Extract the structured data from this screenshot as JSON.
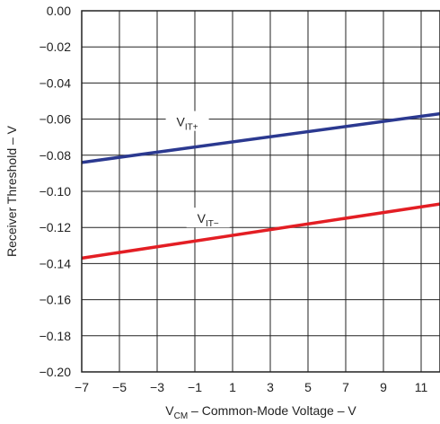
{
  "chart_data": {
    "type": "line",
    "title": "",
    "xlabel_main": "V",
    "xlabel_sub": "CM",
    "xlabel_rest": " – Common-Mode Voltage – V",
    "ylabel": "Receiver Threshold – V",
    "xlim": [
      -7,
      12
    ],
    "ylim": [
      -0.2,
      0.0
    ],
    "grid": true,
    "xticks": [
      -7,
      -5,
      -3,
      -1,
      1,
      3,
      5,
      7,
      9,
      11
    ],
    "xtick_labels": [
      "−7",
      "−5",
      "−3",
      "−1",
      "1",
      "3",
      "5",
      "7",
      "9",
      "11"
    ],
    "yticks": [
      0,
      -0.02,
      -0.04,
      -0.06,
      -0.08,
      -0.1,
      -0.12,
      -0.14,
      -0.16,
      -0.18,
      -0.2
    ],
    "ytick_labels": [
      "0.00",
      "−0.02",
      "−0.04",
      "−0.06",
      "−0.08",
      "−0.10",
      "−0.12",
      "−0.14",
      "−0.16",
      "−0.18",
      "−0.20"
    ],
    "series": [
      {
        "name_main": "V",
        "name_sub": "IT+",
        "color": "#2b3990",
        "x": [
          -7,
          12
        ],
        "y": [
          -0.084,
          -0.057
        ],
        "label_at": [
          -1.4,
          -0.064
        ]
      },
      {
        "name_main": "V",
        "name_sub": "IT−",
        "color": "#e31e24",
        "x": [
          -7,
          12
        ],
        "y": [
          -0.137,
          -0.107
        ],
        "label_at": [
          -0.3,
          -0.1175
        ]
      }
    ]
  }
}
